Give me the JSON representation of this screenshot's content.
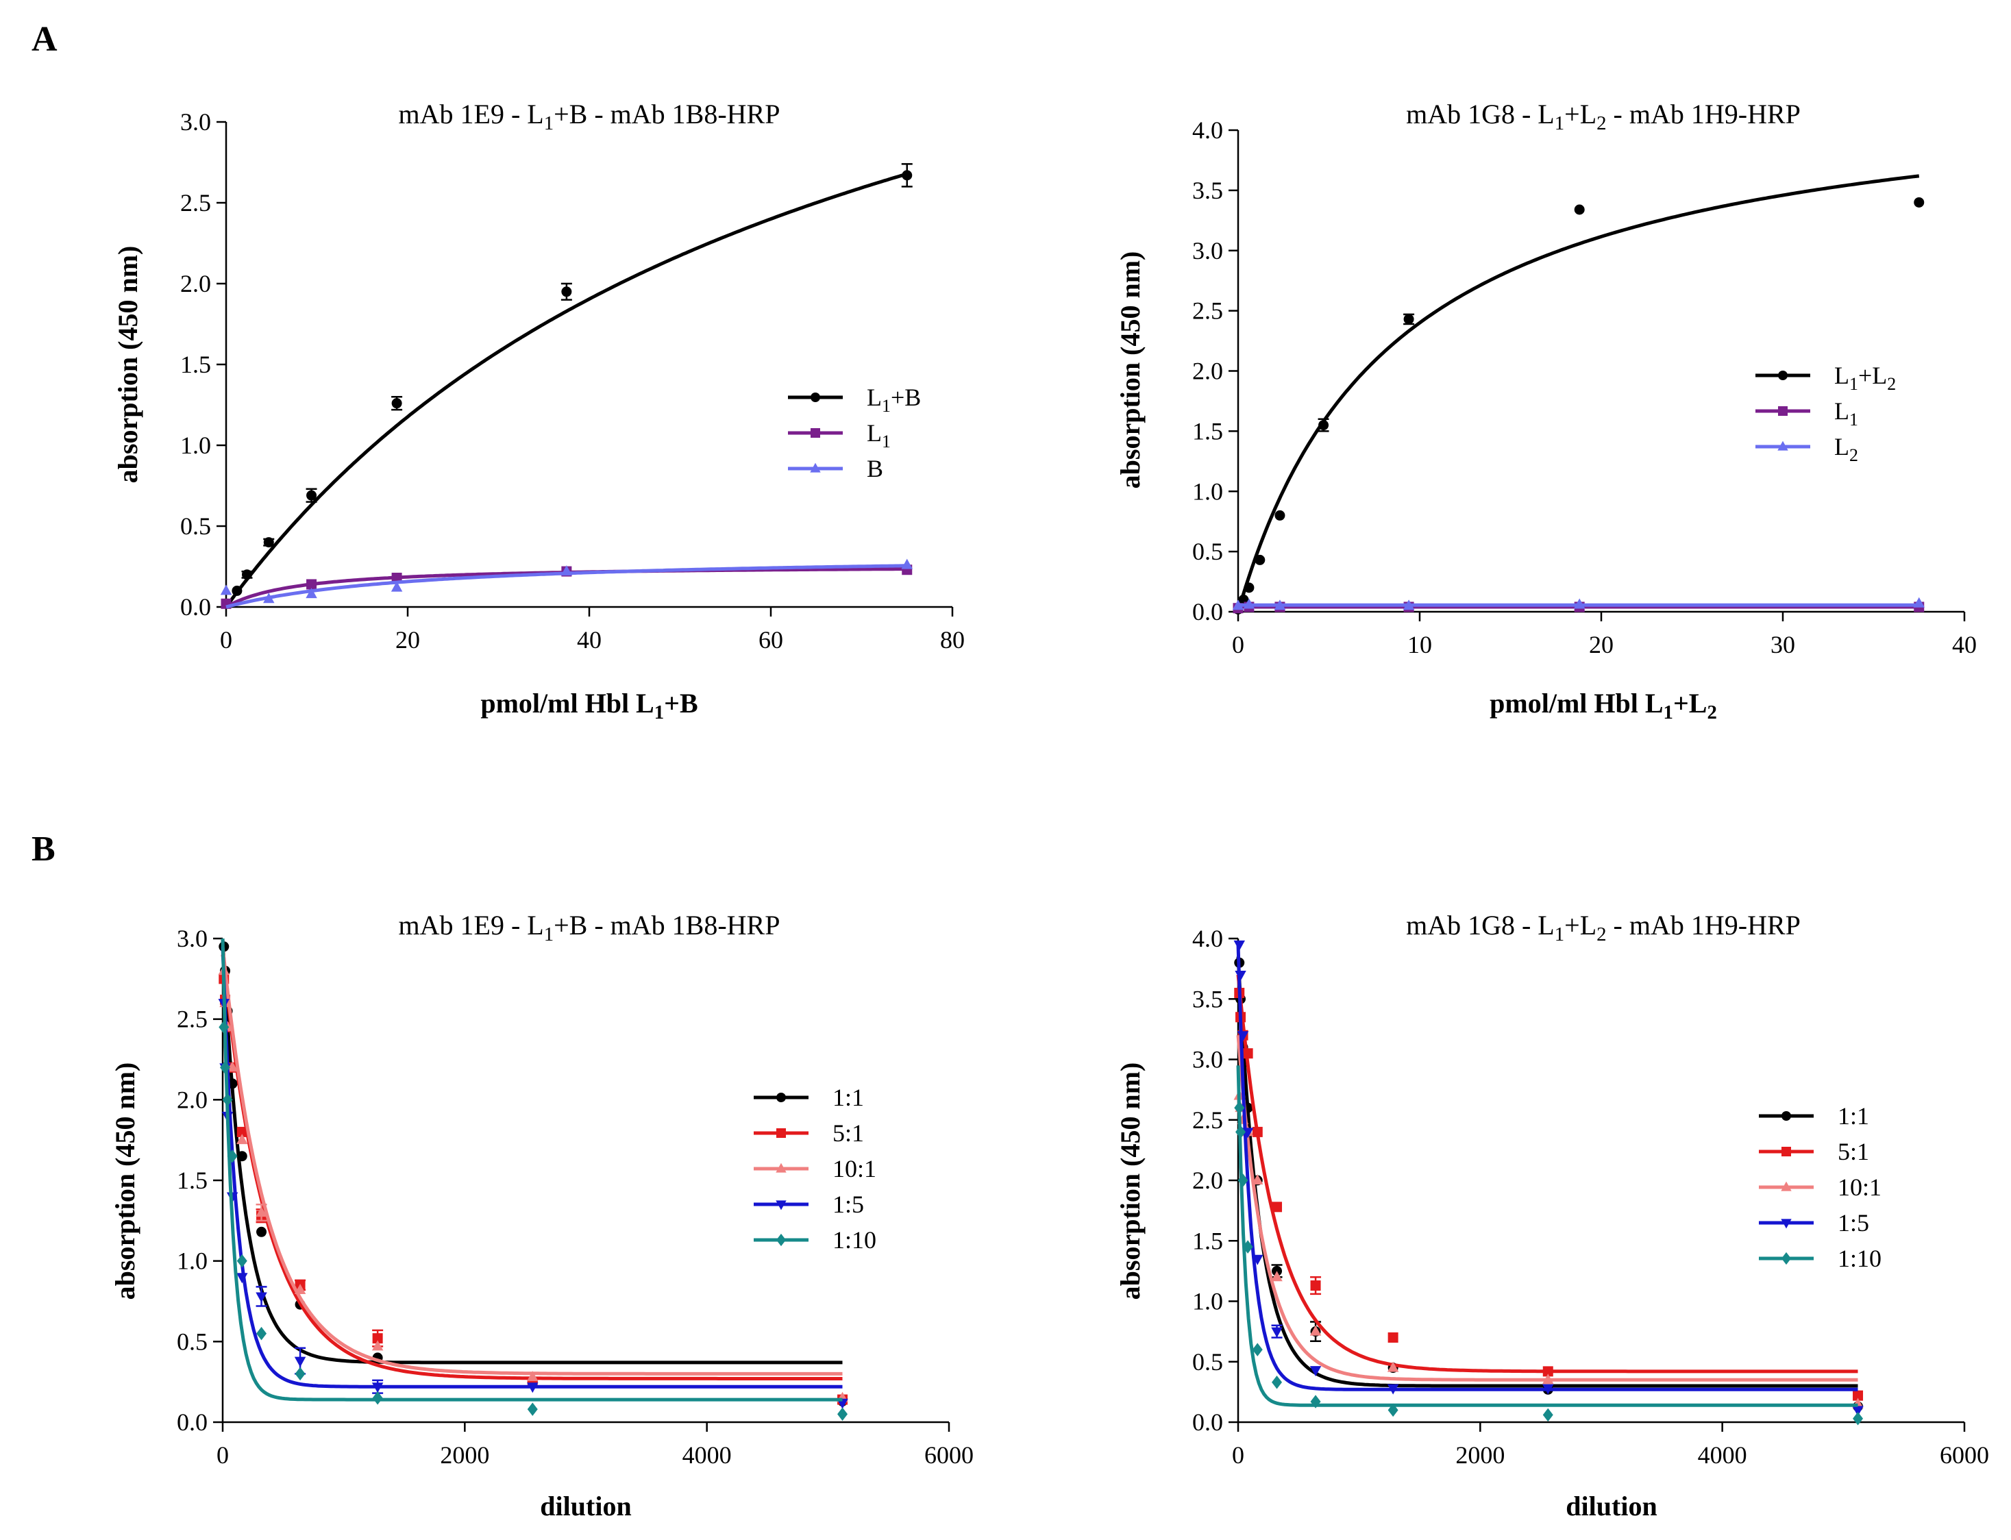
{
  "panels": [
    {
      "letter": "A"
    },
    {
      "letter": "B"
    }
  ],
  "chart_data": [
    {
      "type": "line",
      "panel": "A",
      "title": "mAb 1E9 - L<sub>1</sub>+B - mAb 1B8-HRP",
      "title_parts": [
        "mAb 1E9 - L",
        "1",
        "+B - mAb 1B8-HRP"
      ],
      "xlabel_parts": [
        "pmol/ml Hbl L",
        "1",
        "+B"
      ],
      "ylabel": "absorption (450 nm)",
      "xlim": [
        0,
        80
      ],
      "ylim": [
        0,
        3.0
      ],
      "xticks": [
        0,
        20,
        40,
        60,
        80
      ],
      "xtick_labels": [
        "0",
        "20",
        "40",
        "60",
        "80"
      ],
      "yticks": [
        0,
        0.5,
        1.0,
        1.5,
        2.0,
        2.5,
        3.0
      ],
      "ytick_labels": [
        "0.0",
        "0.5",
        "1.0",
        "1.5",
        "2.0",
        "2.5",
        "3.0"
      ],
      "legend_position": "right-middle",
      "series": [
        {
          "name_parts": [
            "L",
            "1",
            "+B"
          ],
          "color": "#000000",
          "marker": "circle",
          "x": [
            0,
            1.2,
            2.3,
            4.7,
            9.4,
            18.8,
            37.5,
            75
          ],
          "y": [
            0.02,
            0.1,
            0.2,
            0.4,
            0.69,
            1.26,
            1.95,
            2.67
          ],
          "err": [
            0,
            0,
            0.02,
            0.02,
            0.04,
            0.04,
            0.05,
            0.07
          ],
          "fit": {
            "type": "hyperbola",
            "bmax": 5.0,
            "kd": 65
          }
        },
        {
          "name_parts": [
            "L",
            "1",
            ""
          ],
          "color": "#7a1f8c",
          "marker": "square",
          "x": [
            0,
            9.4,
            18.8,
            37.5,
            75
          ],
          "y": [
            0.02,
            0.14,
            0.18,
            0.22,
            0.23
          ],
          "err": [
            0,
            0,
            0,
            0,
            0
          ],
          "fit": {
            "type": "hyperbola",
            "bmax": 0.26,
            "kd": 8
          }
        },
        {
          "name_parts": [
            "B",
            "",
            ""
          ],
          "color": "#6a6ef0",
          "marker": "triangle",
          "x": [
            0,
            4.7,
            9.4,
            18.8,
            37.5,
            75
          ],
          "y": [
            0.1,
            0.05,
            0.08,
            0.12,
            0.22,
            0.26
          ],
          "err": [
            0,
            0,
            0,
            0,
            0,
            0
          ],
          "fit": {
            "type": "hyperbola",
            "bmax": 0.33,
            "kd": 22
          }
        }
      ]
    },
    {
      "type": "line",
      "panel": "A",
      "title_parts": [
        "mAb 1G8 - L",
        "1",
        "+L",
        "2",
        " - mAb 1H9-HRP"
      ],
      "xlabel_parts": [
        "pmol/ml Hbl L",
        "1",
        "+L",
        "2"
      ],
      "ylabel": "absorption (450 nm)",
      "xlim": [
        0,
        40
      ],
      "ylim": [
        0,
        4.0
      ],
      "xticks": [
        0,
        10,
        20,
        30,
        40
      ],
      "xtick_labels": [
        "0",
        "10",
        "20",
        "30",
        "40"
      ],
      "yticks": [
        0,
        0.5,
        1.0,
        1.5,
        2.0,
        2.5,
        3.0,
        3.5,
        4.0
      ],
      "ytick_labels": [
        "0.0",
        "0.5",
        "1.0",
        "1.5",
        "2.0",
        "2.5",
        "3.0",
        "3.5",
        "4.0"
      ],
      "legend_position": "right-middle",
      "series": [
        {
          "name_parts": [
            "L",
            "1",
            "+L",
            "2"
          ],
          "color": "#000000",
          "marker": "circle",
          "x": [
            0,
            0.3,
            0.6,
            1.2,
            2.3,
            4.7,
            9.4,
            18.8,
            37.5
          ],
          "y": [
            0.02,
            0.1,
            0.2,
            0.43,
            0.8,
            1.55,
            2.43,
            3.34,
            3.4
          ],
          "err": [
            0,
            0,
            0,
            0,
            0,
            0.05,
            0.04,
            0,
            0
          ],
          "fit": {
            "type": "hyperbola",
            "bmax": 4.44,
            "kd": 8.5
          }
        },
        {
          "name_parts": [
            "L",
            "1",
            "",
            ""
          ],
          "color": "#7a1f8c",
          "marker": "square",
          "x": [
            0,
            0.6,
            2.3,
            9.4,
            18.8,
            37.5
          ],
          "y": [
            0.03,
            0.04,
            0.04,
            0.04,
            0.04,
            0.04
          ],
          "err": [
            0,
            0,
            0,
            0,
            0,
            0
          ],
          "fit": {
            "type": "constant",
            "value": 0.04
          }
        },
        {
          "name_parts": [
            "L",
            "2",
            "",
            ""
          ],
          "color": "#6a6ef0",
          "marker": "triangle",
          "x": [
            0,
            0.6,
            2.3,
            9.4,
            18.8,
            37.5
          ],
          "y": [
            0.05,
            0.06,
            0.05,
            0.05,
            0.06,
            0.07
          ],
          "err": [
            0,
            0,
            0,
            0,
            0,
            0
          ],
          "fit": {
            "type": "constant",
            "value": 0.055
          }
        }
      ]
    },
    {
      "type": "line",
      "panel": "B",
      "title_parts": [
        "mAb 1E9 - L",
        "1",
        "+B - mAb 1B8-HRP"
      ],
      "xlabel_parts": [
        "dilution",
        "",
        ""
      ],
      "ylabel": "absorption (450 nm)",
      "xlim": [
        0,
        6000
      ],
      "ylim": [
        0,
        3.0
      ],
      "xticks": [
        0,
        2000,
        4000,
        6000
      ],
      "xtick_labels": [
        "0",
        "2000",
        "4000",
        "6000"
      ],
      "yticks": [
        0,
        0.5,
        1.0,
        1.5,
        2.0,
        2.5,
        3.0
      ],
      "ytick_labels": [
        "0.0",
        "0.5",
        "1.0",
        "1.5",
        "2.0",
        "2.5",
        "3.0"
      ],
      "legend_position": "right-middle",
      "series": [
        {
          "name_parts": [
            "1:1",
            "",
            ""
          ],
          "color": "#000000",
          "marker": "circle",
          "x": [
            10,
            20,
            40,
            80,
            160,
            320,
            640,
            1280,
            2560,
            5120
          ],
          "y": [
            2.95,
            2.8,
            2.55,
            2.1,
            1.65,
            1.18,
            0.73,
            0.4,
            0.25,
            0.13
          ],
          "err": [
            0,
            0,
            0,
            0,
            0,
            0,
            0,
            0,
            0,
            0
          ],
          "fit": {
            "type": "exp",
            "bottom": 0.37,
            "top": 3.0,
            "k": 0.0055
          }
        },
        {
          "name_parts": [
            "5:1",
            "",
            ""
          ],
          "color": "#e31a1c",
          "marker": "square",
          "x": [
            10,
            20,
            40,
            80,
            160,
            320,
            640,
            1280,
            2560,
            5120
          ],
          "y": [
            2.75,
            2.62,
            2.45,
            2.2,
            1.8,
            1.28,
            0.85,
            0.52,
            0.25,
            0.14
          ],
          "err": [
            0,
            0,
            0,
            0,
            0,
            0.04,
            0.03,
            0.05,
            0,
            0
          ],
          "fit": {
            "type": "exp",
            "bottom": 0.27,
            "top": 2.9,
            "k": 0.0027
          }
        },
        {
          "name_parts": [
            "10:1",
            "",
            ""
          ],
          "color": "#f08080",
          "marker": "triangle",
          "x": [
            10,
            20,
            40,
            80,
            160,
            320,
            640,
            1280,
            2560,
            5120
          ],
          "y": [
            2.8,
            2.6,
            2.45,
            2.2,
            1.75,
            1.3,
            0.82,
            0.47,
            0.28,
            0.15
          ],
          "err": [
            0,
            0,
            0,
            0,
            0,
            0.05,
            0,
            0,
            0,
            0
          ],
          "fit": {
            "type": "exp",
            "bottom": 0.3,
            "top": 2.95,
            "k": 0.0027
          }
        },
        {
          "name_parts": [
            "1:5",
            "",
            ""
          ],
          "color": "#1515d0",
          "marker": "triangle-down",
          "x": [
            10,
            20,
            40,
            80,
            160,
            320,
            640,
            1280,
            2560,
            5120
          ],
          "y": [
            2.6,
            2.2,
            1.9,
            1.4,
            0.9,
            0.78,
            0.38,
            0.22,
            0.22,
            0.12
          ],
          "err": [
            0,
            0,
            0,
            0,
            0,
            0.06,
            0.08,
            0.04,
            0,
            0
          ],
          "fit": {
            "type": "exp",
            "bottom": 0.22,
            "top": 2.95,
            "k": 0.008
          }
        },
        {
          "name_parts": [
            "1:10",
            "",
            ""
          ],
          "color": "#168a8a",
          "marker": "diamond",
          "x": [
            10,
            20,
            40,
            80,
            160,
            320,
            640,
            1280,
            2560,
            5120
          ],
          "y": [
            2.45,
            2.2,
            2.0,
            1.65,
            1.0,
            0.55,
            0.3,
            0.15,
            0.08,
            0.05
          ],
          "err": [
            0,
            0,
            0,
            0,
            0,
            0,
            0,
            0,
            0,
            0
          ],
          "fit": {
            "type": "exp",
            "bottom": 0.14,
            "top": 3.0,
            "k": 0.012
          }
        }
      ]
    },
    {
      "type": "line",
      "panel": "B",
      "title_parts": [
        "mAb 1G8 - L",
        "1",
        "+L",
        "2",
        " - mAb 1H9-HRP"
      ],
      "xlabel_parts": [
        "dilution",
        "",
        ""
      ],
      "ylabel": "absorption (450 nm)",
      "xlim": [
        0,
        6000
      ],
      "ylim": [
        0,
        4.0
      ],
      "xticks": [
        0,
        2000,
        4000,
        6000
      ],
      "xtick_labels": [
        "0",
        "2000",
        "4000",
        "6000"
      ],
      "yticks": [
        0,
        0.5,
        1.0,
        1.5,
        2.0,
        2.5,
        3.0,
        3.5,
        4.0
      ],
      "ytick_labels": [
        "0.0",
        "0.5",
        "1.0",
        "1.5",
        "2.0",
        "2.5",
        "3.0",
        "3.5",
        "4.0"
      ],
      "legend_position": "right-middle",
      "series": [
        {
          "name_parts": [
            "1:1",
            "",
            ""
          ],
          "color": "#000000",
          "marker": "circle",
          "x": [
            10,
            20,
            40,
            80,
            160,
            320,
            640,
            1280,
            2560,
            5120
          ],
          "y": [
            3.8,
            3.5,
            3.1,
            2.6,
            2.0,
            1.25,
            0.75,
            0.45,
            0.27,
            0.13
          ],
          "err": [
            0,
            0,
            0,
            0,
            0,
            0.05,
            0.08,
            0,
            0,
            0
          ],
          "fit": {
            "type": "exp",
            "bottom": 0.3,
            "top": 3.85,
            "k": 0.0055
          }
        },
        {
          "name_parts": [
            "5:1",
            "",
            ""
          ],
          "color": "#e31a1c",
          "marker": "square",
          "x": [
            10,
            20,
            40,
            80,
            160,
            320,
            640,
            1280,
            2560,
            5120
          ],
          "y": [
            3.55,
            3.35,
            3.2,
            3.05,
            2.4,
            1.78,
            1.13,
            0.7,
            0.42,
            0.22
          ],
          "err": [
            0,
            0,
            0,
            0,
            0,
            0,
            0.07,
            0,
            0,
            0
          ],
          "fit": {
            "type": "exp",
            "bottom": 0.42,
            "top": 3.7,
            "k": 0.0032
          }
        },
        {
          "name_parts": [
            "10:1",
            "",
            ""
          ],
          "color": "#f08080",
          "marker": "triangle",
          "x": [
            10,
            20,
            40,
            80,
            160,
            320,
            640,
            1280,
            2560,
            5120
          ],
          "y": [
            2.7,
            2.6,
            2.5,
            2.4,
            2.0,
            1.2,
            0.75,
            0.45,
            0.35,
            0.15
          ],
          "err": [
            0,
            0,
            0,
            0,
            0,
            0,
            0,
            0,
            0,
            0
          ],
          "fit": {
            "type": "exp",
            "bottom": 0.35,
            "top": 3.2,
            "k": 0.0045
          }
        },
        {
          "name_parts": [
            "1:5",
            "",
            ""
          ],
          "color": "#1515d0",
          "marker": "triangle-down",
          "x": [
            10,
            20,
            40,
            80,
            160,
            320,
            640,
            1280,
            2560,
            5120
          ],
          "y": [
            3.95,
            3.7,
            3.2,
            2.4,
            1.35,
            0.75,
            0.43,
            0.28,
            0.28,
            0.1
          ],
          "err": [
            0,
            0,
            0,
            0,
            0,
            0.05,
            0,
            0,
            0,
            0
          ],
          "fit": {
            "type": "exp",
            "bottom": 0.27,
            "top": 3.95,
            "k": 0.0095
          }
        },
        {
          "name_parts": [
            "1:10",
            "",
            ""
          ],
          "color": "#168a8a",
          "marker": "diamond",
          "x": [
            10,
            20,
            40,
            80,
            160,
            320,
            640,
            1280,
            2560,
            5120
          ],
          "y": [
            2.6,
            2.4,
            2.0,
            1.45,
            0.6,
            0.33,
            0.17,
            0.1,
            0.06,
            0.03
          ],
          "err": [
            0,
            0,
            0,
            0,
            0,
            0,
            0,
            0,
            0,
            0
          ],
          "fit": {
            "type": "exp",
            "bottom": 0.14,
            "top": 2.95,
            "k": 0.016
          }
        }
      ]
    }
  ]
}
